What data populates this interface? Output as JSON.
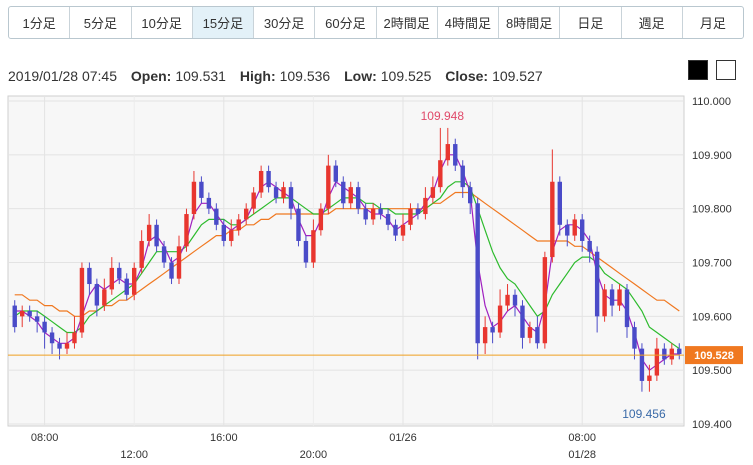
{
  "timeframes": [
    "1分足",
    "5分足",
    "10分足",
    "15分足",
    "30分足",
    "60分足",
    "2時間足",
    "4時間足",
    "8時間足",
    "日足",
    "週足",
    "月足"
  ],
  "active_timeframe": "15分足",
  "ohlc": {
    "datetime": "2019/01/28 07:45",
    "open_label": "Open:",
    "open": "109.531",
    "high_label": "High:",
    "high": "109.536",
    "low_label": "Low:",
    "low": "109.525",
    "close_label": "Close:",
    "close": "109.527"
  },
  "colors": {
    "up": "#e8362f",
    "down": "#4a4bc8",
    "ma_short": "#a020c0",
    "ma_mid": "#2dbb2d",
    "ma_long": "#f07820",
    "price_line": "#f0a020",
    "price_tag": "#f07820"
  },
  "chart_data": {
    "type": "candlestick",
    "y_ticks": [
      "110.000",
      "109.900",
      "109.800",
      "109.700",
      "109.600",
      "109.500",
      "109.400"
    ],
    "ylim": [
      109.4,
      110.0
    ],
    "x_ticks_top": [
      "08:00",
      "16:00",
      "01/26",
      "08:00"
    ],
    "x_ticks_bottom": [
      "12:00",
      "20:00",
      "01/28"
    ],
    "annotations": {
      "high": "109.948",
      "low": "109.456"
    },
    "last_price": "109.528",
    "candles": [
      [
        109.62,
        109.58,
        109.63,
        109.57
      ],
      [
        109.6,
        109.61,
        109.62,
        109.58
      ],
      [
        109.61,
        109.6,
        109.62,
        109.59
      ],
      [
        109.6,
        109.59,
        109.61,
        109.57
      ],
      [
        109.59,
        109.57,
        109.6,
        109.54
      ],
      [
        109.57,
        109.55,
        109.58,
        109.53
      ],
      [
        109.55,
        109.54,
        109.56,
        109.52
      ],
      [
        109.54,
        109.55,
        109.57,
        109.53
      ],
      [
        109.55,
        109.57,
        109.6,
        109.54
      ],
      [
        109.57,
        109.69,
        109.7,
        109.56
      ],
      [
        109.69,
        109.66,
        109.7,
        109.64
      ],
      [
        109.66,
        109.62,
        109.67,
        109.6
      ],
      [
        109.62,
        109.65,
        109.67,
        109.61
      ],
      [
        109.65,
        109.69,
        109.71,
        109.64
      ],
      [
        109.69,
        109.67,
        109.7,
        109.66
      ],
      [
        109.67,
        109.64,
        109.68,
        109.63
      ],
      [
        109.64,
        109.69,
        109.7,
        109.63
      ],
      [
        109.69,
        109.74,
        109.76,
        109.68
      ],
      [
        109.74,
        109.77,
        109.79,
        109.73
      ],
      [
        109.77,
        109.73,
        109.78,
        109.72
      ],
      [
        109.73,
        109.7,
        109.74,
        109.69
      ],
      [
        109.7,
        109.67,
        109.71,
        109.66
      ],
      [
        109.67,
        109.73,
        109.75,
        109.66
      ],
      [
        109.73,
        109.79,
        109.8,
        109.72
      ],
      [
        109.79,
        109.85,
        109.87,
        109.78
      ],
      [
        109.85,
        109.82,
        109.86,
        109.81
      ],
      [
        109.82,
        109.8,
        109.83,
        109.79
      ],
      [
        109.8,
        109.77,
        109.81,
        109.76
      ],
      [
        109.77,
        109.74,
        109.78,
        109.73
      ],
      [
        109.74,
        109.76,
        109.78,
        109.73
      ],
      [
        109.76,
        109.78,
        109.79,
        109.75
      ],
      [
        109.78,
        109.8,
        109.81,
        109.77
      ],
      [
        109.8,
        109.83,
        109.84,
        109.79
      ],
      [
        109.83,
        109.87,
        109.88,
        109.82
      ],
      [
        109.87,
        109.84,
        109.88,
        109.83
      ],
      [
        109.84,
        109.82,
        109.85,
        109.81
      ],
      [
        109.82,
        109.84,
        109.85,
        109.81
      ],
      [
        109.84,
        109.8,
        109.85,
        109.78
      ],
      [
        109.8,
        109.74,
        109.81,
        109.73
      ],
      [
        109.74,
        109.7,
        109.75,
        109.69
      ],
      [
        109.7,
        109.76,
        109.78,
        109.69
      ],
      [
        109.76,
        109.8,
        109.81,
        109.75
      ],
      [
        109.8,
        109.88,
        109.9,
        109.79
      ],
      [
        109.88,
        109.85,
        109.89,
        109.84
      ],
      [
        109.85,
        109.81,
        109.86,
        109.8
      ],
      [
        109.81,
        109.84,
        109.85,
        109.8
      ],
      [
        109.84,
        109.8,
        109.85,
        109.79
      ],
      [
        109.8,
        109.78,
        109.81,
        109.77
      ],
      [
        109.78,
        109.8,
        109.81,
        109.77
      ],
      [
        109.8,
        109.79,
        109.81,
        109.78
      ],
      [
        109.79,
        109.77,
        109.8,
        109.76
      ],
      [
        109.77,
        109.75,
        109.78,
        109.74
      ],
      [
        109.75,
        109.77,
        109.79,
        109.74
      ],
      [
        109.77,
        109.8,
        109.81,
        109.76
      ],
      [
        109.8,
        109.79,
        109.81,
        109.78
      ],
      [
        109.79,
        109.82,
        109.84,
        109.78
      ],
      [
        109.82,
        109.84,
        109.86,
        109.81
      ],
      [
        109.84,
        109.89,
        109.95,
        109.83
      ],
      [
        109.89,
        109.92,
        109.95,
        109.88
      ],
      [
        109.92,
        109.88,
        109.93,
        109.87
      ],
      [
        109.88,
        109.84,
        109.89,
        109.82
      ],
      [
        109.84,
        109.81,
        109.85,
        109.79
      ],
      [
        109.81,
        109.55,
        109.82,
        109.52
      ],
      [
        109.55,
        109.58,
        109.6,
        109.53
      ],
      [
        109.58,
        109.57,
        109.59,
        109.55
      ],
      [
        109.57,
        109.62,
        109.65,
        109.56
      ],
      [
        109.62,
        109.64,
        109.66,
        109.61
      ],
      [
        109.64,
        109.62,
        109.65,
        109.6
      ],
      [
        109.62,
        109.56,
        109.63,
        109.54
      ],
      [
        109.56,
        109.58,
        109.59,
        109.55
      ],
      [
        109.58,
        109.55,
        109.6,
        109.54
      ],
      [
        109.55,
        109.71,
        109.72,
        109.54
      ],
      [
        109.71,
        109.85,
        109.91,
        109.7
      ],
      [
        109.85,
        109.77,
        109.86,
        109.75
      ],
      [
        109.77,
        109.75,
        109.78,
        109.73
      ],
      [
        109.75,
        109.78,
        109.79,
        109.74
      ],
      [
        109.78,
        109.74,
        109.79,
        109.72
      ],
      [
        109.74,
        109.72,
        109.75,
        109.7
      ],
      [
        109.72,
        109.6,
        109.73,
        109.57
      ],
      [
        109.6,
        109.65,
        109.66,
        109.59
      ],
      [
        109.65,
        109.62,
        109.66,
        109.6
      ],
      [
        109.62,
        109.65,
        109.66,
        109.61
      ],
      [
        109.65,
        109.58,
        109.66,
        109.56
      ],
      [
        109.58,
        109.54,
        109.59,
        109.52
      ],
      [
        109.54,
        109.48,
        109.55,
        109.46
      ],
      [
        109.48,
        109.49,
        109.51,
        109.46
      ],
      [
        109.49,
        109.54,
        109.56,
        109.48
      ],
      [
        109.54,
        109.52,
        109.55,
        109.51
      ],
      [
        109.52,
        109.54,
        109.55,
        109.51
      ],
      [
        109.54,
        109.53,
        109.55,
        109.52
      ]
    ],
    "ma_short": [
      109.61,
      109.61,
      109.6,
      109.59,
      109.57,
      109.56,
      109.55,
      109.55,
      109.56,
      109.6,
      109.64,
      109.66,
      109.65,
      109.66,
      109.67,
      109.66,
      109.66,
      109.69,
      109.74,
      109.75,
      109.73,
      109.7,
      109.71,
      109.74,
      109.79,
      109.81,
      109.81,
      109.79,
      109.77,
      109.76,
      109.77,
      109.78,
      109.81,
      109.84,
      109.85,
      109.84,
      109.83,
      109.82,
      109.78,
      109.75,
      109.75,
      109.78,
      109.82,
      109.85,
      109.84,
      109.83,
      109.82,
      109.8,
      109.79,
      109.79,
      109.78,
      109.76,
      109.77,
      109.78,
      109.79,
      109.81,
      109.83,
      109.87,
      109.9,
      109.9,
      109.87,
      109.83,
      109.7,
      109.62,
      109.58,
      109.59,
      109.61,
      109.62,
      109.6,
      109.58,
      109.57,
      109.62,
      109.72,
      109.76,
      109.77,
      109.77,
      109.76,
      109.74,
      109.68,
      109.64,
      109.63,
      109.63,
      109.61,
      109.57,
      109.52,
      109.5,
      109.51,
      109.52,
      109.53,
      109.53
    ],
    "ma_mid": [
      109.6,
      109.61,
      109.61,
      109.61,
      109.6,
      109.59,
      109.58,
      109.57,
      109.57,
      109.58,
      109.6,
      109.61,
      109.62,
      109.63,
      109.64,
      109.65,
      109.66,
      109.68,
      109.7,
      109.72,
      109.72,
      109.72,
      109.72,
      109.73,
      109.75,
      109.77,
      109.78,
      109.78,
      109.78,
      109.77,
      109.77,
      109.78,
      109.79,
      109.8,
      109.81,
      109.82,
      109.82,
      109.82,
      109.81,
      109.8,
      109.79,
      109.79,
      109.8,
      109.81,
      109.82,
      109.82,
      109.82,
      109.81,
      109.81,
      109.8,
      109.8,
      109.79,
      109.79,
      109.79,
      109.79,
      109.8,
      109.81,
      109.82,
      109.84,
      109.85,
      109.85,
      109.84,
      109.8,
      109.76,
      109.72,
      109.69,
      109.67,
      109.66,
      109.64,
      109.62,
      109.6,
      109.61,
      109.64,
      109.66,
      109.68,
      109.7,
      109.71,
      109.71,
      109.7,
      109.68,
      109.67,
      109.66,
      109.65,
      109.63,
      109.61,
      109.58,
      109.57,
      109.56,
      109.55,
      109.54
    ],
    "ma_long": [
      109.64,
      109.64,
      109.63,
      109.63,
      109.62,
      109.62,
      109.61,
      109.61,
      109.6,
      109.6,
      109.61,
      109.61,
      109.62,
      109.62,
      109.63,
      109.63,
      109.64,
      109.65,
      109.66,
      109.67,
      109.68,
      109.69,
      109.7,
      109.71,
      109.72,
      109.73,
      109.74,
      109.75,
      109.75,
      109.76,
      109.76,
      109.77,
      109.77,
      109.78,
      109.78,
      109.79,
      109.79,
      109.79,
      109.79,
      109.79,
      109.79,
      109.79,
      109.79,
      109.8,
      109.8,
      109.8,
      109.8,
      109.8,
      109.8,
      109.8,
      109.8,
      109.8,
      109.8,
      109.8,
      109.8,
      109.8,
      109.81,
      109.81,
      109.82,
      109.83,
      109.83,
      109.83,
      109.82,
      109.81,
      109.8,
      109.79,
      109.78,
      109.77,
      109.76,
      109.75,
      109.74,
      109.74,
      109.74,
      109.74,
      109.74,
      109.73,
      109.73,
      109.72,
      109.71,
      109.7,
      109.69,
      109.68,
      109.67,
      109.66,
      109.65,
      109.64,
      109.63,
      109.63,
      109.62,
      109.61
    ]
  }
}
